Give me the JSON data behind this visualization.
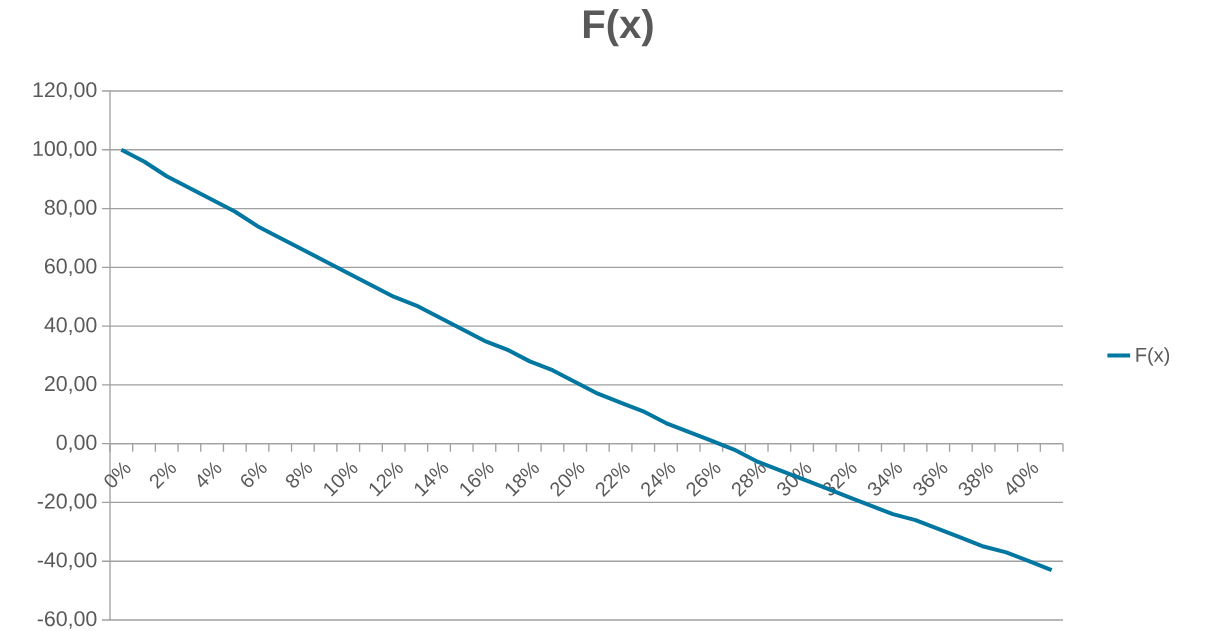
{
  "chart_data": {
    "type": "line",
    "title": "F(x)",
    "categories": [
      "0%",
      null,
      "2%",
      null,
      "4%",
      null,
      "6%",
      null,
      "8%",
      null,
      "10%",
      null,
      "12%",
      null,
      "14%",
      null,
      "16%",
      null,
      "18%",
      null,
      "20%",
      null,
      "22%",
      null,
      "24%",
      null,
      "26%",
      null,
      "28%",
      null,
      "30%",
      null,
      "32%",
      null,
      "34%",
      null,
      "36%",
      null,
      "38%",
      null,
      "40%",
      null
    ],
    "series": [
      {
        "name": "F(x)",
        "color": "#0077a1",
        "values": [
          100,
          96,
          91,
          87,
          83,
          79,
          74,
          70,
          66,
          62,
          58,
          54,
          50,
          47,
          43,
          39,
          35,
          32,
          28,
          25,
          21,
          17,
          14,
          11,
          7,
          4,
          1,
          -2,
          -6,
          -9,
          -12,
          -15,
          -18,
          -21,
          -24,
          -26,
          -29,
          -32,
          -35,
          -37,
          -40,
          -43
        ]
      }
    ],
    "ylim": [
      -60,
      120
    ],
    "yticks": [
      {
        "value": -60,
        "label": "-60,00"
      },
      {
        "value": -40,
        "label": "-40,00"
      },
      {
        "value": -20,
        "label": "-20,00"
      },
      {
        "value": 0,
        "label": "0,00"
      },
      {
        "value": 20,
        "label": "20,00"
      },
      {
        "value": 40,
        "label": "40,00"
      },
      {
        "value": 60,
        "label": "60,00"
      },
      {
        "value": 80,
        "label": "80,00"
      },
      {
        "value": 100,
        "label": "100,00"
      },
      {
        "value": 120,
        "label": "120,00"
      }
    ],
    "grid": "y",
    "legend": "right",
    "marker": "none",
    "line_style": "solid"
  }
}
